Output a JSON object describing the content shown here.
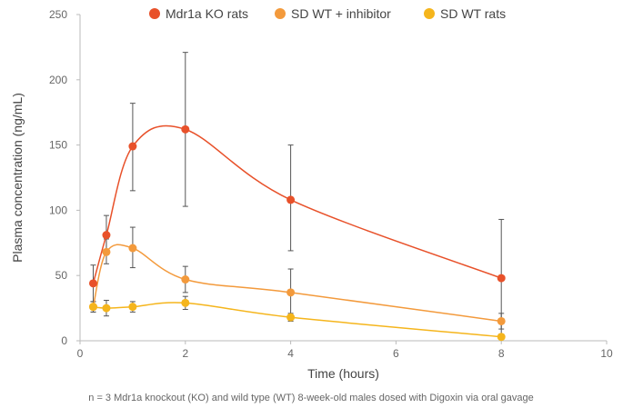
{
  "chart_data": {
    "type": "line",
    "title": "",
    "xlabel": "Time (hours)",
    "ylabel": "Plasma concentration (ng/mL)",
    "xlim": [
      0,
      10
    ],
    "ylim": [
      0,
      250
    ],
    "x_ticks": [
      "0",
      "2",
      "4",
      "6",
      "8",
      "10"
    ],
    "y_ticks": [
      "0",
      "50",
      "100",
      "150",
      "200",
      "250"
    ],
    "grid": false,
    "legend_position": "top-center",
    "x": [
      0.25,
      0.5,
      1,
      2,
      4,
      8
    ],
    "series": [
      {
        "name": "Mdr1a KO rats",
        "color": "#e8512a",
        "values": [
          44,
          81,
          149,
          162,
          108,
          48
        ],
        "error_upper": [
          58,
          96,
          182,
          221,
          150,
          93
        ],
        "error_lower": [
          30,
          66,
          115,
          103,
          69,
          3
        ]
      },
      {
        "name": "SD WT + inhibitor",
        "color": "#f39a3c",
        "values": [
          26,
          68,
          71,
          47,
          37,
          15
        ],
        "error_upper": [
          30,
          78,
          87,
          57,
          55,
          21
        ],
        "error_lower": [
          22,
          59,
          56,
          37,
          19,
          9
        ]
      },
      {
        "name": "SD WT rats",
        "color": "#f5b51c",
        "values": [
          26,
          25,
          26,
          29,
          18,
          3
        ],
        "error_upper": [
          30,
          31,
          30,
          34,
          21,
          5
        ],
        "error_lower": [
          22,
          19,
          22,
          24,
          15,
          1
        ]
      }
    ],
    "footnote": "n = 3 Mdr1a knockout (KO) and wild type (WT) 8-week-old males dosed with Digoxin via oral gavage"
  }
}
